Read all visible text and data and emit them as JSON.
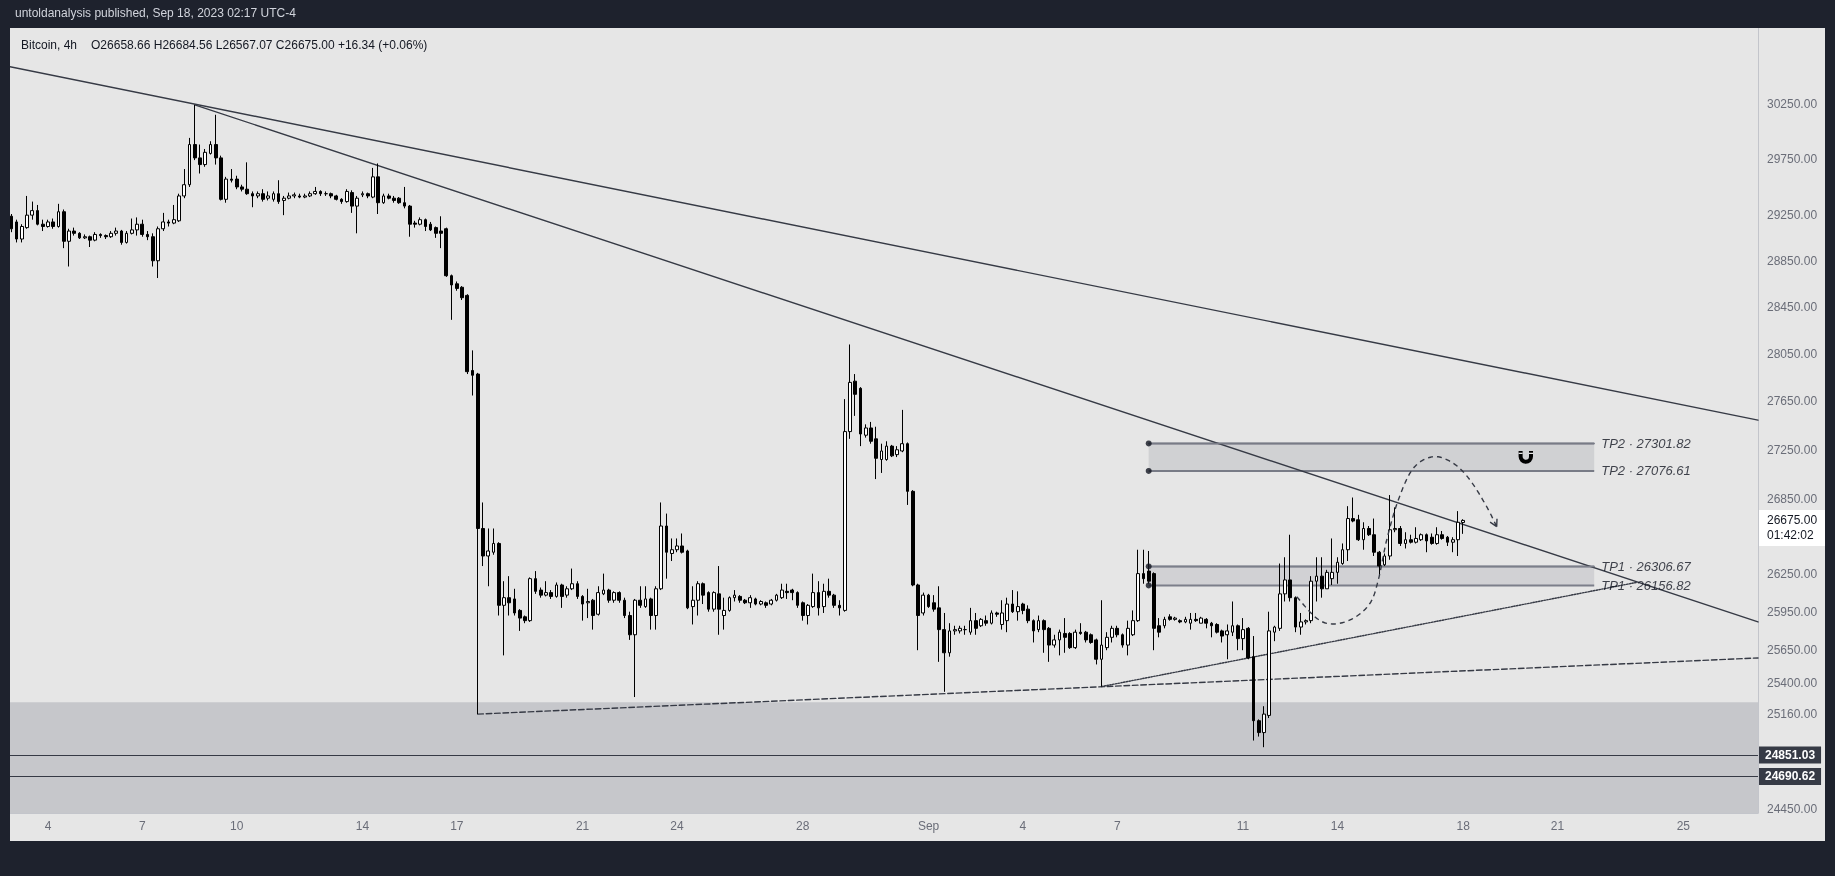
{
  "chart_data": {
    "type": "candlestick",
    "title": "Bitcoin, 4h",
    "subtitle": "O26658.66 H26684.56 L26567.07 C26675.00 +16.34 (+0.06%)",
    "annotations": [
      "untoldanalysis published, Sep 18, 2023 02:17 UTC-4",
      {
        "text": "TP2 · 27301.82",
        "x": "2023-09-22T04:00",
        "y": 27301.82
      },
      {
        "text": "TP2 · 27076.61",
        "x": "2023-09-22T04:00",
        "y": 27076.61
      },
      {
        "text": "TP1 · 26306.67",
        "x": "2023-09-22T04:00",
        "y": 26306.67
      },
      {
        "text": "TP1 · 26156.82",
        "x": "2023-09-22T04:00",
        "y": 26156.82
      },
      "26675.00\n01:42:02"
    ],
    "x": [
      "2023-08-02T20:00",
      "2023-08-03T00:00",
      "2023-08-03T04:00",
      "2023-08-03T08:00",
      "2023-08-03T12:00",
      "2023-08-03T16:00",
      "2023-08-03T20:00",
      "2023-08-04T00:00",
      "2023-08-04T04:00",
      "2023-08-04T08:00",
      "2023-08-04T12:00",
      "2023-08-04T16:00",
      "2023-08-04T20:00",
      "2023-08-05T00:00",
      "2023-08-05T04:00",
      "2023-08-05T08:00",
      "2023-08-05T12:00",
      "2023-08-05T16:00",
      "2023-08-05T20:00",
      "2023-08-06T00:00",
      "2023-08-06T04:00",
      "2023-08-06T08:00",
      "2023-08-06T12:00",
      "2023-08-06T16:00",
      "2023-08-06T20:00",
      "2023-08-07T00:00",
      "2023-08-07T04:00",
      "2023-08-07T08:00",
      "2023-08-07T12:00",
      "2023-08-07T16:00",
      "2023-08-07T20:00",
      "2023-08-08T00:00",
      "2023-08-08T04:00",
      "2023-08-08T08:00",
      "2023-08-08T12:00",
      "2023-08-08T16:00",
      "2023-08-08T20:00",
      "2023-08-09T00:00",
      "2023-08-09T04:00",
      "2023-08-09T08:00",
      "2023-08-09T12:00",
      "2023-08-09T16:00",
      "2023-08-09T20:00",
      "2023-08-10T00:00",
      "2023-08-10T04:00",
      "2023-08-10T08:00",
      "2023-08-10T12:00",
      "2023-08-10T16:00",
      "2023-08-10T20:00",
      "2023-08-11T00:00",
      "2023-08-11T04:00",
      "2023-08-11T08:00",
      "2023-08-11T12:00",
      "2023-08-11T16:00",
      "2023-08-11T20:00",
      "2023-08-12T00:00",
      "2023-08-12T04:00",
      "2023-08-12T08:00",
      "2023-08-12T12:00",
      "2023-08-12T16:00",
      "2023-08-12T20:00",
      "2023-08-13T00:00",
      "2023-08-13T04:00",
      "2023-08-13T08:00",
      "2023-08-13T12:00",
      "2023-08-13T16:00",
      "2023-08-13T20:00",
      "2023-08-14T00:00",
      "2023-08-14T04:00",
      "2023-08-14T08:00",
      "2023-08-14T12:00",
      "2023-08-14T16:00",
      "2023-08-14T20:00",
      "2023-08-15T00:00",
      "2023-08-15T04:00",
      "2023-08-15T08:00",
      "2023-08-15T12:00",
      "2023-08-15T16:00",
      "2023-08-15T20:00",
      "2023-08-16T00:00",
      "2023-08-16T04:00",
      "2023-08-16T08:00",
      "2023-08-16T12:00",
      "2023-08-16T16:00",
      "2023-08-16T20:00",
      "2023-08-17T00:00",
      "2023-08-17T04:00",
      "2023-08-17T08:00",
      "2023-08-17T12:00",
      "2023-08-17T16:00",
      "2023-08-17T20:00",
      "2023-08-18T00:00",
      "2023-08-18T04:00",
      "2023-08-18T08:00",
      "2023-08-18T12:00",
      "2023-08-18T16:00",
      "2023-08-18T20:00",
      "2023-08-19T00:00",
      "2023-08-19T04:00",
      "2023-08-19T08:00",
      "2023-08-19T12:00",
      "2023-08-19T16:00",
      "2023-08-19T20:00",
      "2023-08-20T00:00",
      "2023-08-20T04:00",
      "2023-08-20T08:00",
      "2023-08-20T12:00",
      "2023-08-20T16:00",
      "2023-08-20T20:00",
      "2023-08-21T00:00",
      "2023-08-21T04:00",
      "2023-08-21T08:00",
      "2023-08-21T12:00",
      "2023-08-21T16:00",
      "2023-08-21T20:00",
      "2023-08-22T00:00",
      "2023-08-22T04:00",
      "2023-08-22T08:00",
      "2023-08-22T12:00",
      "2023-08-22T16:00",
      "2023-08-22T20:00",
      "2023-08-23T00:00",
      "2023-08-23T04:00",
      "2023-08-23T08:00",
      "2023-08-23T12:00",
      "2023-08-23T16:00",
      "2023-08-23T20:00",
      "2023-08-24T00:00",
      "2023-08-24T04:00",
      "2023-08-24T08:00",
      "2023-08-24T12:00",
      "2023-08-24T16:00",
      "2023-08-24T20:00",
      "2023-08-25T00:00",
      "2023-08-25T04:00",
      "2023-08-25T08:00",
      "2023-08-25T12:00",
      "2023-08-25T16:00",
      "2023-08-25T20:00",
      "2023-08-26T00:00",
      "2023-08-26T04:00",
      "2023-08-26T08:00",
      "2023-08-26T12:00",
      "2023-08-26T16:00",
      "2023-08-26T20:00",
      "2023-08-27T00:00",
      "2023-08-27T04:00",
      "2023-08-27T08:00",
      "2023-08-27T12:00",
      "2023-08-27T16:00",
      "2023-08-27T20:00",
      "2023-08-28T00:00",
      "2023-08-28T04:00",
      "2023-08-28T08:00",
      "2023-08-28T12:00",
      "2023-08-28T16:00",
      "2023-08-28T20:00",
      "2023-08-29T00:00",
      "2023-08-29T04:00",
      "2023-08-29T08:00",
      "2023-08-29T12:00",
      "2023-08-29T16:00",
      "2023-08-29T20:00",
      "2023-08-30T00:00",
      "2023-08-30T04:00",
      "2023-08-30T08:00",
      "2023-08-30T12:00",
      "2023-08-30T16:00",
      "2023-08-30T20:00",
      "2023-08-31T00:00",
      "2023-08-31T04:00",
      "2023-08-31T08:00",
      "2023-08-31T12:00",
      "2023-08-31T16:00",
      "2023-08-31T20:00",
      "2023-09-01T00:00",
      "2023-09-01T04:00",
      "2023-09-01T08:00",
      "2023-09-01T12:00",
      "2023-09-01T16:00",
      "2023-09-01T20:00",
      "2023-09-02T00:00",
      "2023-09-02T04:00",
      "2023-09-02T08:00",
      "2023-09-02T12:00",
      "2023-09-02T16:00",
      "2023-09-02T20:00",
      "2023-09-03T00:00",
      "2023-09-03T04:00",
      "2023-09-03T08:00",
      "2023-09-03T12:00",
      "2023-09-03T16:00",
      "2023-09-03T20:00",
      "2023-09-04T00:00",
      "2023-09-04T04:00",
      "2023-09-04T08:00",
      "2023-09-04T12:00",
      "2023-09-04T16:00",
      "2023-09-04T20:00",
      "2023-09-05T00:00",
      "2023-09-05T04:00",
      "2023-09-05T08:00",
      "2023-09-05T12:00",
      "2023-09-05T16:00",
      "2023-09-05T20:00",
      "2023-09-06T00:00",
      "2023-09-06T04:00",
      "2023-09-06T08:00",
      "2023-09-06T12:00",
      "2023-09-06T16:00",
      "2023-09-06T20:00",
      "2023-09-07T00:00",
      "2023-09-07T04:00",
      "2023-09-07T08:00",
      "2023-09-07T12:00",
      "2023-09-07T16:00",
      "2023-09-07T20:00",
      "2023-09-08T00:00",
      "2023-09-08T04:00",
      "2023-09-08T08:00",
      "2023-09-08T12:00",
      "2023-09-08T16:00",
      "2023-09-08T20:00",
      "2023-09-09T00:00",
      "2023-09-09T04:00",
      "2023-09-09T08:00",
      "2023-09-09T12:00",
      "2023-09-09T16:00",
      "2023-09-09T20:00",
      "2023-09-10T00:00",
      "2023-09-10T04:00",
      "2023-09-10T08:00",
      "2023-09-10T12:00",
      "2023-09-10T16:00",
      "2023-09-10T20:00",
      "2023-09-11T00:00",
      "2023-09-11T04:00",
      "2023-09-11T08:00",
      "2023-09-11T12:00",
      "2023-09-11T16:00",
      "2023-09-11T20:00",
      "2023-09-12T00:00",
      "2023-09-12T04:00",
      "2023-09-12T08:00",
      "2023-09-12T12:00",
      "2023-09-12T16:00",
      "2023-09-12T20:00",
      "2023-09-13T00:00",
      "2023-09-13T04:00",
      "2023-09-13T08:00",
      "2023-09-13T12:00",
      "2023-09-13T16:00",
      "2023-09-13T20:00",
      "2023-09-14T00:00",
      "2023-09-14T04:00",
      "2023-09-14T08:00",
      "2023-09-14T12:00",
      "2023-09-14T16:00",
      "2023-09-14T20:00",
      "2023-09-15T00:00",
      "2023-09-15T04:00",
      "2023-09-15T08:00",
      "2023-09-15T12:00",
      "2023-09-15T16:00",
      "2023-09-15T20:00",
      "2023-09-16T00:00",
      "2023-09-16T04:00",
      "2023-09-16T08:00",
      "2023-09-16T12:00",
      "2023-09-16T16:00",
      "2023-09-16T20:00",
      "2023-09-17T00:00",
      "2023-09-17T04:00",
      "2023-09-17T08:00",
      "2023-09-17T12:00",
      "2023-09-17T16:00",
      "2023-09-17T20:00",
      "2023-09-18T00:00"
    ],
    "ohlc": [
      [
        29240,
        29260,
        29100,
        29130
      ],
      [
        29190,
        29210,
        29010,
        29040
      ],
      [
        29040,
        29170,
        29010,
        29150
      ],
      [
        29140,
        29420,
        29130,
        29250
      ],
      [
        29250,
        29370,
        29210,
        29290
      ],
      [
        29290,
        29340,
        29160,
        29170
      ],
      [
        29170,
        29210,
        29110,
        29150
      ],
      [
        29150,
        29210,
        29140,
        29190
      ],
      [
        29190,
        29220,
        29130,
        29150
      ],
      [
        29150,
        29350,
        29140,
        29280
      ],
      [
        29280,
        29300,
        28960,
        29020
      ],
      [
        29020,
        29130,
        28800,
        29110
      ],
      [
        29110,
        29140,
        29070,
        29090
      ],
      [
        29090,
        29100,
        29040,
        29050
      ],
      [
        29050,
        29080,
        29040,
        29060
      ],
      [
        29060,
        29070,
        28970,
        29030
      ],
      [
        29030,
        29100,
        29020,
        29080
      ],
      [
        29080,
        29090,
        29050,
        29070
      ],
      [
        29070,
        29080,
        29040,
        29060
      ],
      [
        29060,
        29110,
        29050,
        29090
      ],
      [
        29090,
        29140,
        29070,
        29110
      ],
      [
        29110,
        29120,
        28990,
        29010
      ],
      [
        29010,
        29110,
        29000,
        29090
      ],
      [
        29090,
        29220,
        29080,
        29120
      ],
      [
        29120,
        29230,
        29070,
        29170
      ],
      [
        29170,
        29210,
        29060,
        29080
      ],
      [
        29080,
        29110,
        29030,
        29060
      ],
      [
        29060,
        29090,
        28800,
        28850
      ],
      [
        28850,
        29150,
        28700,
        29130
      ],
      [
        29130,
        29270,
        29110,
        29190
      ],
      [
        29190,
        29210,
        29150,
        29180
      ],
      [
        29180,
        29340,
        29170,
        29210
      ],
      [
        29200,
        29440,
        29190,
        29420
      ],
      [
        29420,
        29660,
        29400,
        29520
      ],
      [
        29520,
        29940,
        29500,
        29880
      ],
      [
        29880,
        30240,
        29740,
        29760
      ],
      [
        29760,
        29880,
        29620,
        29700
      ],
      [
        29700,
        29840,
        29680,
        29810
      ],
      [
        29800,
        29910,
        29790,
        29880
      ],
      [
        29880,
        30150,
        29700,
        29760
      ],
      [
        29760,
        29780,
        29380,
        29390
      ],
      [
        29390,
        29590,
        29360,
        29570
      ],
      [
        29570,
        29660,
        29540,
        29560
      ],
      [
        29570,
        29600,
        29480,
        29500
      ],
      [
        29500,
        29520,
        29460,
        29480
      ],
      [
        29480,
        29720,
        29430,
        29440
      ],
      [
        29440,
        29460,
        29320,
        29420
      ],
      [
        29420,
        29460,
        29400,
        29440
      ],
      [
        29440,
        29480,
        29370,
        29390
      ],
      [
        29400,
        29460,
        29380,
        29420
      ],
      [
        29390,
        29460,
        29370,
        29440
      ],
      [
        29440,
        29560,
        29350,
        29370
      ],
      [
        29380,
        29420,
        29250,
        29400
      ],
      [
        29400,
        29450,
        29390,
        29420
      ],
      [
        29420,
        29450,
        29400,
        29430
      ],
      [
        29420,
        29440,
        29400,
        29410
      ],
      [
        29410,
        29440,
        29400,
        29420
      ],
      [
        29420,
        29460,
        29410,
        29440
      ],
      [
        29440,
        29500,
        29430,
        29460
      ],
      [
        29460,
        29470,
        29420,
        29440
      ],
      [
        29440,
        29460,
        29420,
        29440
      ],
      [
        29440,
        29450,
        29400,
        29420
      ],
      [
        29420,
        29430,
        29380,
        29390
      ],
      [
        29390,
        29400,
        29350,
        29370
      ],
      [
        29370,
        29480,
        29360,
        29460
      ],
      [
        29450,
        29470,
        29270,
        29330
      ],
      [
        29330,
        29420,
        29090,
        29400
      ],
      [
        29430,
        29460,
        29410,
        29440
      ],
      [
        29440,
        29450,
        29400,
        29420
      ],
      [
        29410,
        29670,
        29400,
        29590
      ],
      [
        29590,
        29710,
        29260,
        29360
      ],
      [
        29360,
        29440,
        29350,
        29420
      ],
      [
        29420,
        29440,
        29390,
        29400
      ],
      [
        29400,
        29420,
        29360,
        29380
      ],
      [
        29400,
        29410,
        29350,
        29360
      ],
      [
        29360,
        29500,
        29310,
        29330
      ],
      [
        29330,
        29340,
        29060,
        29170
      ],
      [
        29180,
        29200,
        29140,
        29170
      ],
      [
        29170,
        29230,
        29160,
        29210
      ],
      [
        29210,
        29220,
        29110,
        29150
      ],
      [
        29170,
        29190,
        29110,
        29120
      ],
      [
        29140,
        29150,
        29050,
        29090
      ],
      [
        29110,
        29240,
        28960,
        29090
      ],
      [
        29130,
        29140,
        28710,
        28720
      ],
      [
        28720,
        28730,
        28340,
        28640
      ],
      [
        28650,
        28670,
        28590,
        28610
      ],
      [
        28620,
        28630,
        28510,
        28530
      ],
      [
        28550,
        28560,
        27880,
        27900
      ],
      [
        27910,
        28080,
        27700,
        27870
      ],
      [
        27880,
        27890,
        25160,
        26610
      ],
      [
        26610,
        26820,
        26310,
        26390
      ],
      [
        26390,
        26610,
        26150,
        26430
      ],
      [
        26420,
        26610,
        26400,
        26490
      ],
      [
        26490,
        26500,
        25920,
        26000
      ],
      [
        26000,
        26190,
        25610,
        26060
      ],
      [
        26060,
        26230,
        25920,
        26020
      ],
      [
        26050,
        26130,
        25920,
        25940
      ],
      [
        25960,
        25970,
        25800,
        25900
      ],
      [
        25910,
        25920,
        25860,
        25880
      ],
      [
        25880,
        26220,
        25870,
        26210
      ],
      [
        26210,
        26270,
        26090,
        26110
      ],
      [
        26120,
        26140,
        26060,
        26080
      ],
      [
        26080,
        26190,
        26070,
        26100
      ],
      [
        26100,
        26120,
        26050,
        26070
      ],
      [
        26070,
        26180,
        26060,
        26160
      ],
      [
        26160,
        26170,
        25980,
        26070
      ],
      [
        26080,
        26150,
        26060,
        26130
      ],
      [
        26130,
        26290,
        26120,
        26170
      ],
      [
        26170,
        26190,
        26050,
        26070
      ],
      [
        26070,
        26080,
        25880,
        26010
      ],
      [
        26020,
        26130,
        25900,
        26030
      ],
      [
        26040,
        26050,
        25810,
        25920
      ],
      [
        25930,
        26150,
        25920,
        26100
      ],
      [
        26090,
        26250,
        26080,
        26120
      ],
      [
        26120,
        26130,
        26020,
        26040
      ],
      [
        26040,
        26110,
        26020,
        26100
      ],
      [
        26100,
        26110,
        26020,
        26040
      ],
      [
        26040,
        26060,
        25900,
        25920
      ],
      [
        25920,
        25950,
        25730,
        25770
      ],
      [
        25770,
        26050,
        25290,
        26040
      ],
      [
        26040,
        26150,
        25980,
        26000
      ],
      [
        25990,
        26150,
        25980,
        26050
      ],
      [
        26050,
        26060,
        25810,
        25920
      ],
      [
        25920,
        26150,
        25810,
        26130
      ],
      [
        26130,
        26820,
        26120,
        26630
      ],
      [
        26630,
        26730,
        26210,
        26420
      ],
      [
        26410,
        26530,
        26350,
        26440
      ],
      [
        26440,
        26530,
        26420,
        26470
      ],
      [
        26470,
        26570,
        26410,
        26420
      ],
      [
        26430,
        26440,
        25970,
        25980
      ],
      [
        25990,
        26150,
        25850,
        26040
      ],
      [
        26040,
        26190,
        25920,
        26170
      ],
      [
        26170,
        26180,
        26010,
        26080
      ],
      [
        26100,
        26110,
        25950,
        25970
      ],
      [
        25970,
        26110,
        25950,
        26100
      ],
      [
        26090,
        26310,
        25770,
        25970
      ],
      [
        25920,
        26060,
        25810,
        25960
      ],
      [
        25960,
        26070,
        25950,
        26060
      ],
      [
        26060,
        26120,
        26030,
        26080
      ],
      [
        26070,
        26080,
        26020,
        26040
      ],
      [
        26040,
        26050,
        26010,
        26020
      ],
      [
        26020,
        26080,
        25980,
        26060
      ],
      [
        26050,
        26060,
        26000,
        26010
      ],
      [
        26010,
        26040,
        26000,
        26030
      ],
      [
        26020,
        26030,
        25980,
        26000
      ],
      [
        26010,
        26050,
        26000,
        26040
      ],
      [
        26040,
        26090,
        26030,
        26080
      ],
      [
        26060,
        26170,
        26050,
        26120
      ],
      [
        26110,
        26170,
        26050,
        26100
      ],
      [
        26120,
        26130,
        26040,
        26100
      ],
      [
        26100,
        26110,
        25980,
        26000
      ],
      [
        26020,
        26030,
        25880,
        25920
      ],
      [
        25920,
        26010,
        25850,
        26000
      ],
      [
        25990,
        26250,
        25980,
        26100
      ],
      [
        26100,
        26190,
        25920,
        25980
      ],
      [
        25990,
        26170,
        25940,
        26110
      ],
      [
        26110,
        26210,
        26060,
        26080
      ],
      [
        26080,
        26090,
        25980,
        26000
      ],
      [
        26000,
        26040,
        25920,
        25980
      ],
      [
        25960,
        27670,
        25950,
        27400
      ],
      [
        27400,
        28130,
        27340,
        27810
      ],
      [
        27820,
        27880,
        27530,
        27710
      ],
      [
        27760,
        27770,
        27280,
        27380
      ],
      [
        27370,
        27460,
        27350,
        27430
      ],
      [
        27430,
        27480,
        27300,
        27320
      ],
      [
        27340,
        27440,
        27010,
        27180
      ],
      [
        27170,
        27300,
        27060,
        27240
      ],
      [
        27170,
        27320,
        27160,
        27280
      ],
      [
        27280,
        27290,
        27190,
        27200
      ],
      [
        27210,
        27280,
        27190,
        27250
      ],
      [
        27240,
        27580,
        27230,
        27300
      ],
      [
        27300,
        27310,
        26800,
        26910
      ],
      [
        26910,
        26920,
        26150,
        26160
      ],
      [
        26160,
        26170,
        25650,
        25920
      ],
      [
        25940,
        26100,
        25920,
        26080
      ],
      [
        26080,
        26090,
        25980,
        25990
      ],
      [
        26020,
        26080,
        25950,
        25970
      ],
      [
        25980,
        26150,
        25560,
        25810
      ],
      [
        25810,
        25940,
        25330,
        25630
      ],
      [
        25630,
        25860,
        25600,
        25800
      ],
      [
        25800,
        25840,
        25770,
        25810
      ],
      [
        25800,
        25840,
        25780,
        25820
      ],
      [
        25810,
        25840,
        25770,
        25810
      ],
      [
        25790,
        25980,
        25770,
        25880
      ],
      [
        25880,
        25940,
        25770,
        25820
      ],
      [
        25840,
        25900,
        25830,
        25890
      ],
      [
        25880,
        25920,
        25840,
        25860
      ],
      [
        25860,
        25960,
        25850,
        25940
      ],
      [
        25940,
        25950,
        25910,
        25930
      ],
      [
        25850,
        26040,
        25810,
        25940
      ],
      [
        25880,
        26060,
        25790,
        26010
      ],
      [
        26010,
        26120,
        25940,
        25950
      ],
      [
        25950,
        26110,
        25880,
        25990
      ],
      [
        26010,
        26020,
        25930,
        25960
      ],
      [
        25970,
        26000,
        25860,
        25880
      ],
      [
        25880,
        25890,
        25710,
        25800
      ],
      [
        25810,
        25920,
        25790,
        25880
      ],
      [
        25880,
        25890,
        25630,
        25810
      ],
      [
        25820,
        25830,
        25560,
        25690
      ],
      [
        25690,
        25770,
        25670,
        25730
      ],
      [
        25730,
        25810,
        25610,
        25790
      ],
      [
        25780,
        25900,
        25630,
        25750
      ],
      [
        25780,
        25790,
        25660,
        25670
      ],
      [
        25670,
        25810,
        25660,
        25790
      ],
      [
        25790,
        25860,
        25770,
        25780
      ],
      [
        25790,
        25800,
        25710,
        25730
      ],
      [
        25770,
        25780,
        25700,
        25710
      ],
      [
        25730,
        25740,
        25540,
        25580
      ],
      [
        25580,
        26040,
        25370,
        25690
      ],
      [
        25670,
        25790,
        25650,
        25750
      ],
      [
        25750,
        25840,
        25710,
        25820
      ],
      [
        25820,
        25840,
        25750,
        25770
      ],
      [
        25770,
        25780,
        25670,
        25690
      ],
      [
        25690,
        25880,
        25610,
        25820
      ],
      [
        25770,
        25960,
        25760,
        25880
      ],
      [
        25880,
        26440,
        25870,
        26250
      ],
      [
        26250,
        26440,
        26170,
        26210
      ],
      [
        26270,
        26430,
        26170,
        26190
      ],
      [
        26250,
        26260,
        25650,
        25820
      ],
      [
        25840,
        25900,
        25750,
        25790
      ],
      [
        25840,
        25910,
        25820,
        25890
      ],
      [
        25910,
        25930,
        25880,
        25890
      ],
      [
        25890,
        25910,
        25880,
        25900
      ],
      [
        25880,
        25890,
        25860,
        25870
      ],
      [
        25870,
        25910,
        25860,
        25890
      ],
      [
        25860,
        25940,
        25810,
        25890
      ],
      [
        25890,
        25940,
        25870,
        25880
      ],
      [
        25860,
        25910,
        25860,
        25900
      ],
      [
        25890,
        25900,
        25820,
        25860
      ],
      [
        25860,
        25870,
        25750,
        25840
      ],
      [
        25850,
        25860,
        25780,
        25790
      ],
      [
        25800,
        25810,
        25710,
        25760
      ],
      [
        25770,
        25850,
        25580,
        25800
      ],
      [
        25790,
        26030,
        25760,
        25840
      ],
      [
        25840,
        25850,
        25650,
        25740
      ],
      [
        25740,
        25900,
        25650,
        25810
      ],
      [
        25820,
        25830,
        25580,
        25590
      ],
      [
        25600,
        25760,
        24960,
        25110
      ],
      [
        25110,
        25120,
        24990,
        25020
      ],
      [
        25020,
        25220,
        24910,
        25160
      ],
      [
        25150,
        25950,
        25130,
        25800
      ],
      [
        25790,
        25840,
        25720,
        25830
      ],
      [
        25820,
        26330,
        25800,
        26090
      ],
      [
        26090,
        26380,
        26030,
        26200
      ],
      [
        26200,
        26560,
        26030,
        26060
      ],
      [
        26060,
        26070,
        25790,
        25830
      ],
      [
        25830,
        25940,
        25770,
        25870
      ],
      [
        25870,
        25890,
        25850,
        25880
      ],
      [
        25880,
        26230,
        25860,
        26190
      ],
      [
        26190,
        26380,
        26030,
        26230
      ],
      [
        26230,
        26380,
        26060,
        26130
      ],
      [
        26130,
        26280,
        26130,
        26260
      ],
      [
        26210,
        26530,
        26160,
        26260
      ],
      [
        26260,
        26380,
        26170,
        26340
      ],
      [
        26330,
        26490,
        26320,
        26440
      ],
      [
        26440,
        26790,
        26350,
        26690
      ],
      [
        26690,
        26860,
        26660,
        26670
      ],
      [
        26680,
        26720,
        26510,
        26520
      ],
      [
        26520,
        26660,
        26440,
        26610
      ],
      [
        26610,
        26630,
        26550,
        26560
      ],
      [
        26560,
        26690,
        26390,
        26420
      ],
      [
        26420,
        26430,
        26230,
        26310
      ],
      [
        26320,
        26410,
        26310,
        26390
      ],
      [
        26390,
        26880,
        26360,
        26600
      ],
      [
        26600,
        26780,
        26580,
        26610
      ],
      [
        26610,
        26630,
        26470,
        26490
      ],
      [
        26490,
        26580,
        26450,
        26520
      ],
      [
        26520,
        26560,
        26490,
        26500
      ],
      [
        26500,
        26620,
        26490,
        26530
      ],
      [
        26520,
        26570,
        26510,
        26560
      ],
      [
        26560,
        26570,
        26420,
        26510
      ],
      [
        26540,
        26570,
        26480,
        26490
      ],
      [
        26490,
        26620,
        26480,
        26560
      ],
      [
        26560,
        26590,
        26520,
        26530
      ],
      [
        26540,
        26550,
        26470,
        26500
      ],
      [
        26500,
        26540,
        26420,
        26520
      ],
      [
        26520,
        26750,
        26390,
        26660
      ],
      [
        26658.66,
        26684.56,
        26567.07,
        26675
      ]
    ],
    "color": "#000000",
    "series": [
      {
        "type": "line",
        "color": "#363a45",
        "x": [
          "2023-08-02T19:00",
          "2023-09-27T09:00"
        ],
        "values": [
          30590,
          27495
        ]
      },
      {
        "type": "line",
        "color": "#363a45",
        "x": [
          "2023-08-08T16:00",
          "2023-09-27T09:00"
        ],
        "values": [
          30240,
          25870
        ]
      },
      {
        "type": "line",
        "line_style": "dashed",
        "color": "#363a45",
        "x": [
          "2023-08-17T16:00",
          "2023-09-27T09:00"
        ],
        "values": [
          25160,
          25590
        ]
      },
      {
        "type": "line",
        "line_style": "dotted",
        "color": "#363a45",
        "x": [
          "2023-09-06T12:00",
          "2023-09-23T12:00"
        ],
        "values": [
          25370,
          26180
        ]
      },
      {
        "type": "line",
        "color": "#787b86",
        "x": [
          "2023-09-08T00:00",
          "2023-09-22T04:00"
        ],
        "values": [
          27301.82,
          27301.82
        ],
        "lower": [
          27076.61,
          27076.61
        ],
        "upper": [
          27301.82,
          27301.82
        ]
      },
      {
        "type": "line",
        "color": "#7c7f8a",
        "x": [
          "2023-09-08T00:00",
          "2023-09-20T00:00",
          "2023-09-22T04:00"
        ],
        "values": [
          26306.67,
          26306.67,
          26306.67
        ],
        "lower": [
          26156.82,
          26156.82,
          26156.82
        ],
        "upper": [
          26306.67,
          26306.67,
          26306.67
        ]
      },
      {
        "type": "scatter",
        "marker": "circle",
        "color": "#131722",
        "x": [
          "2023-09-08T00:00",
          "2023-09-08T00:00",
          "2023-09-08T00:00",
          "2023-09-08T00:00"
        ],
        "values": [
          27301.82,
          27076.61,
          26306.67,
          26156.82
        ]
      }
    ],
    "xlim": [
      "2023-08-02T19:00",
      "2023-09-27T09:00"
    ],
    "xticks": [
      {
        "value": "2023-08-04",
        "label": "4"
      },
      {
        "value": "2023-08-07",
        "label": "7"
      },
      {
        "value": "2023-08-10",
        "label": "10"
      },
      {
        "value": "2023-08-14",
        "label": "14"
      },
      {
        "value": "2023-08-17",
        "label": "17"
      },
      {
        "value": "2023-08-21",
        "label": "21"
      },
      {
        "value": "2023-08-24",
        "label": "24"
      },
      {
        "value": "2023-08-28",
        "label": "28"
      },
      {
        "value": "2023-09-01",
        "label": "Sep"
      },
      {
        "value": "2023-09-04",
        "label": "4"
      },
      {
        "value": "2023-09-07",
        "label": "7"
      },
      {
        "value": "2023-09-11",
        "label": "11"
      },
      {
        "value": "2023-09-14",
        "label": "14"
      },
      {
        "value": "2023-09-18",
        "label": "18"
      },
      {
        "value": "2023-09-21",
        "label": "21"
      },
      {
        "value": "2023-09-25",
        "label": "25"
      }
    ],
    "ylim": [
      24420,
      30950
    ],
    "yticks": [
      {
        "value": 24450,
        "label": "24450.00"
      },
      {
        "value": 25160,
        "label": "25160.00"
      },
      {
        "value": 25400,
        "label": "25400.00"
      },
      {
        "value": 25650,
        "label": "25650.00"
      },
      {
        "value": 25950,
        "label": "25950.00"
      },
      {
        "value": 26250,
        "label": "26250.00"
      },
      {
        "value": 26850,
        "label": "26850.00"
      },
      {
        "value": 27250,
        "label": "27250.00"
      },
      {
        "value": 27650,
        "label": "27650.00"
      },
      {
        "value": 28050,
        "label": "28050.00"
      },
      {
        "value": 28450,
        "label": "28450.00"
      },
      {
        "value": 28850,
        "label": "28850.00"
      },
      {
        "value": 29250,
        "label": "29250.00"
      },
      {
        "value": 29750,
        "label": "29750.00"
      },
      {
        "value": 30250,
        "label": "30250.00"
      }
    ],
    "log": "y",
    "marker": "none",
    "ref_lines": [
      {
        "axis": "y",
        "value": 24851.03,
        "label": "24851.03",
        "color": "#363a45"
      },
      {
        "axis": "y",
        "value": 24690.62,
        "label": "24690.62",
        "color": "#363a45"
      }
    ],
    "bands": [
      {
        "axis": "y",
        "from": 24420,
        "to": 25250,
        "color": "#c6c7cb"
      }
    ]
  }
}
